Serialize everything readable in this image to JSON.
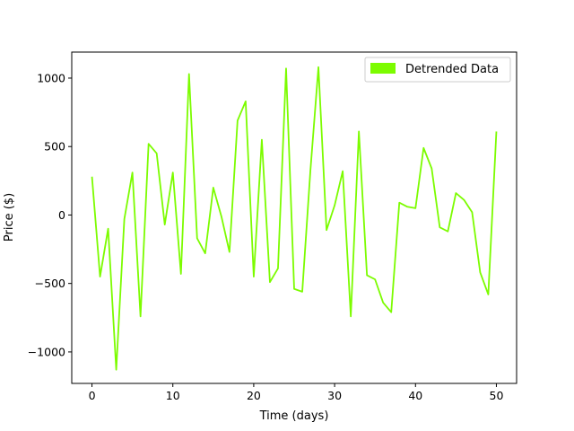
{
  "chart_data": {
    "type": "line",
    "title": "",
    "xlabel": "Time (days)",
    "ylabel": "Price ($)",
    "xlim": [
      -2.5,
      52.5
    ],
    "ylim": [
      -1230,
      1190
    ],
    "xticks": [
      0,
      10,
      20,
      30,
      40,
      50
    ],
    "xtick_labels": [
      "0",
      "10",
      "20",
      "30",
      "40",
      "50"
    ],
    "yticks": [
      -1000,
      -500,
      0,
      500,
      1000
    ],
    "ytick_labels": [
      "−1000",
      "−500",
      "0",
      "500",
      "1000"
    ],
    "grid": false,
    "legend": {
      "position": "top-right",
      "entries": [
        "Detrended Data"
      ]
    },
    "series": [
      {
        "name": "Detrended Data",
        "color": "#7cfc00",
        "x": [
          0,
          1,
          2,
          3,
          4,
          5,
          6,
          7,
          8,
          9,
          10,
          11,
          12,
          13,
          14,
          15,
          16,
          17,
          18,
          19,
          20,
          21,
          22,
          23,
          24,
          25,
          26,
          27,
          28,
          29,
          30,
          31,
          32,
          33,
          34,
          35,
          36,
          37,
          38,
          39,
          40,
          41,
          42,
          43,
          44,
          45,
          46,
          47,
          48,
          49,
          50
        ],
        "y": [
          280,
          -450,
          -100,
          -1130,
          -30,
          310,
          -740,
          520,
          450,
          -70,
          310,
          -430,
          1030,
          -170,
          -280,
          200,
          -10,
          -270,
          690,
          830,
          -450,
          550,
          -490,
          -390,
          1070,
          -540,
          -560,
          320,
          1080,
          -110,
          70,
          320,
          -740,
          610,
          -440,
          -470,
          -640,
          -710,
          90,
          60,
          50,
          490,
          340,
          -90,
          -120,
          160,
          110,
          20,
          -420,
          -580,
          610
        ]
      }
    ]
  }
}
